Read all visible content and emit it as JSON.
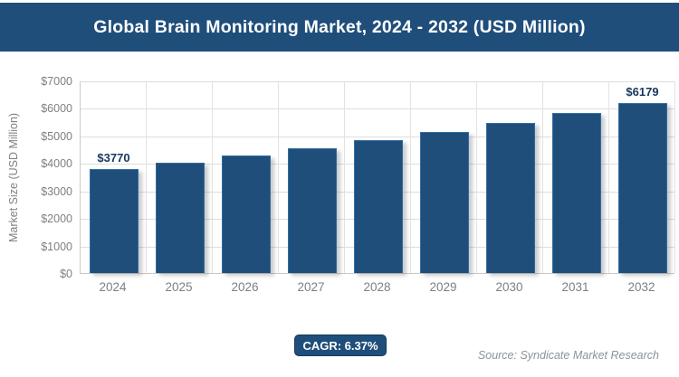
{
  "header": {
    "title": "Global Brain Monitoring Market, 2024 - 2032 (USD Million)"
  },
  "chart_data": {
    "type": "bar",
    "title": "Global Brain Monitoring Market, 2024 - 2032 (USD Million)",
    "categories": [
      "2024",
      "2025",
      "2026",
      "2027",
      "2028",
      "2029",
      "2030",
      "2031",
      "2032"
    ],
    "values": [
      3770,
      4010,
      4266,
      4537,
      4826,
      5134,
      5461,
      5809,
      6179
    ],
    "data_labels": [
      {
        "index": 0,
        "text": "$3770"
      },
      {
        "index": 8,
        "text": "$6179"
      }
    ],
    "xlabel": "",
    "ylabel": "Market Size (USD Million)",
    "ylim": [
      0,
      7000
    ],
    "y_tick_step": 1000,
    "y_tick_prefix": "$",
    "grid": true,
    "legend": false,
    "bar_color": "#1F4E7B",
    "bar_border_color": "#2E6DA4",
    "data_label_color": "#17375E",
    "axis_text_color": "#808080",
    "gridline_color": "#DDDDDD"
  },
  "footer": {
    "cagr_label": "CAGR: 6.37%",
    "source": "Source: Syndicate Market Research"
  }
}
